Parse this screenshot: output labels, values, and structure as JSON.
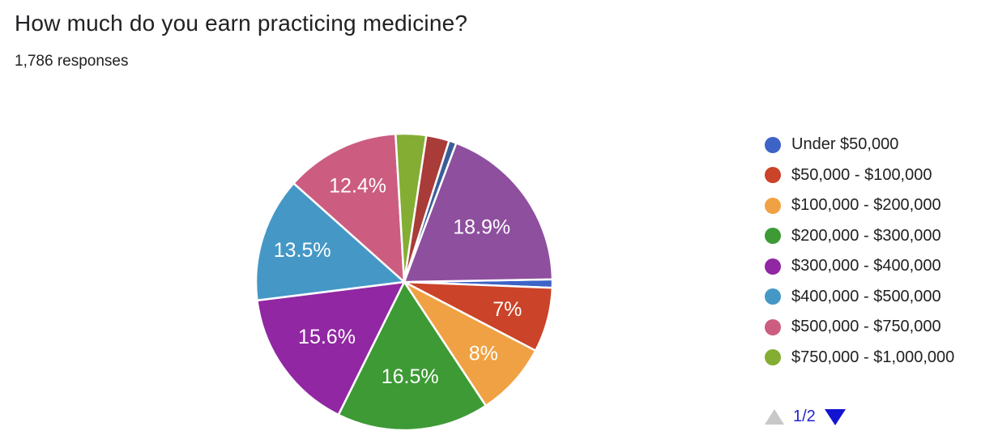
{
  "header": {
    "title": "How much do you earn practicing medicine?",
    "responses": "1,786 responses"
  },
  "chart_data": {
    "type": "pie",
    "title": "How much do you earn practicing medicine?",
    "subtitle": "1,786 responses",
    "legend_position": "right",
    "start_angle_deg": 89,
    "direction": "clockwise",
    "slices": [
      {
        "label": "Under $50,000",
        "value": 0.9,
        "display": null,
        "color": "#3d63c6"
      },
      {
        "label": "$50,000 - $100,000",
        "value": 7,
        "display": "7%",
        "color": "#cb4328"
      },
      {
        "label": "$100,000 - $200,000",
        "value": 8,
        "display": "8%",
        "color": "#f0a143"
      },
      {
        "label": "$200,000 - $300,000",
        "value": 16.5,
        "display": "16.5%",
        "color": "#3d9a35"
      },
      {
        "label": "$300,000 - $400,000",
        "value": 15.6,
        "display": "15.6%",
        "color": "#9127a3"
      },
      {
        "label": "$400,000 - $500,000",
        "value": 13.5,
        "display": "13.5%",
        "color": "#4598c6"
      },
      {
        "label": "$500,000 - $750,000",
        "value": 12.4,
        "display": "12.4%",
        "color": "#cc5d80"
      },
      {
        "label": "$750,000 - $1,000,000",
        "value": 3.3,
        "display": null,
        "color": "#84ad33"
      },
      {
        "label": "",
        "value": 2.5,
        "display": null,
        "color": "#a93b38"
      },
      {
        "label": "",
        "value": 0.8,
        "display": null,
        "color": "#3b5e97"
      },
      {
        "label": "",
        "value": 18.9,
        "display": "18.9%",
        "color": "#8e4f9e"
      }
    ]
  },
  "legend": {
    "items": [
      {
        "label": "Under $50,000",
        "color": "#3d63c6"
      },
      {
        "label": "$50,000 - $100,000",
        "color": "#cb4328"
      },
      {
        "label": "$100,000 - $200,000",
        "color": "#f0a143"
      },
      {
        "label": "$200,000 - $300,000",
        "color": "#3d9a35"
      },
      {
        "label": "$300,000 - $400,000",
        "color": "#9127a3"
      },
      {
        "label": "$400,000 - $500,000",
        "color": "#4598c6"
      },
      {
        "label": "$500,000 - $750,000",
        "color": "#cc5d80"
      },
      {
        "label": "$750,000 - $1,000,000",
        "color": "#84ad33"
      }
    ],
    "pagination": {
      "label": "1/2",
      "up_color": "#c8c8c8",
      "down_color": "#1313d1",
      "text_color": "#2222cc"
    }
  }
}
